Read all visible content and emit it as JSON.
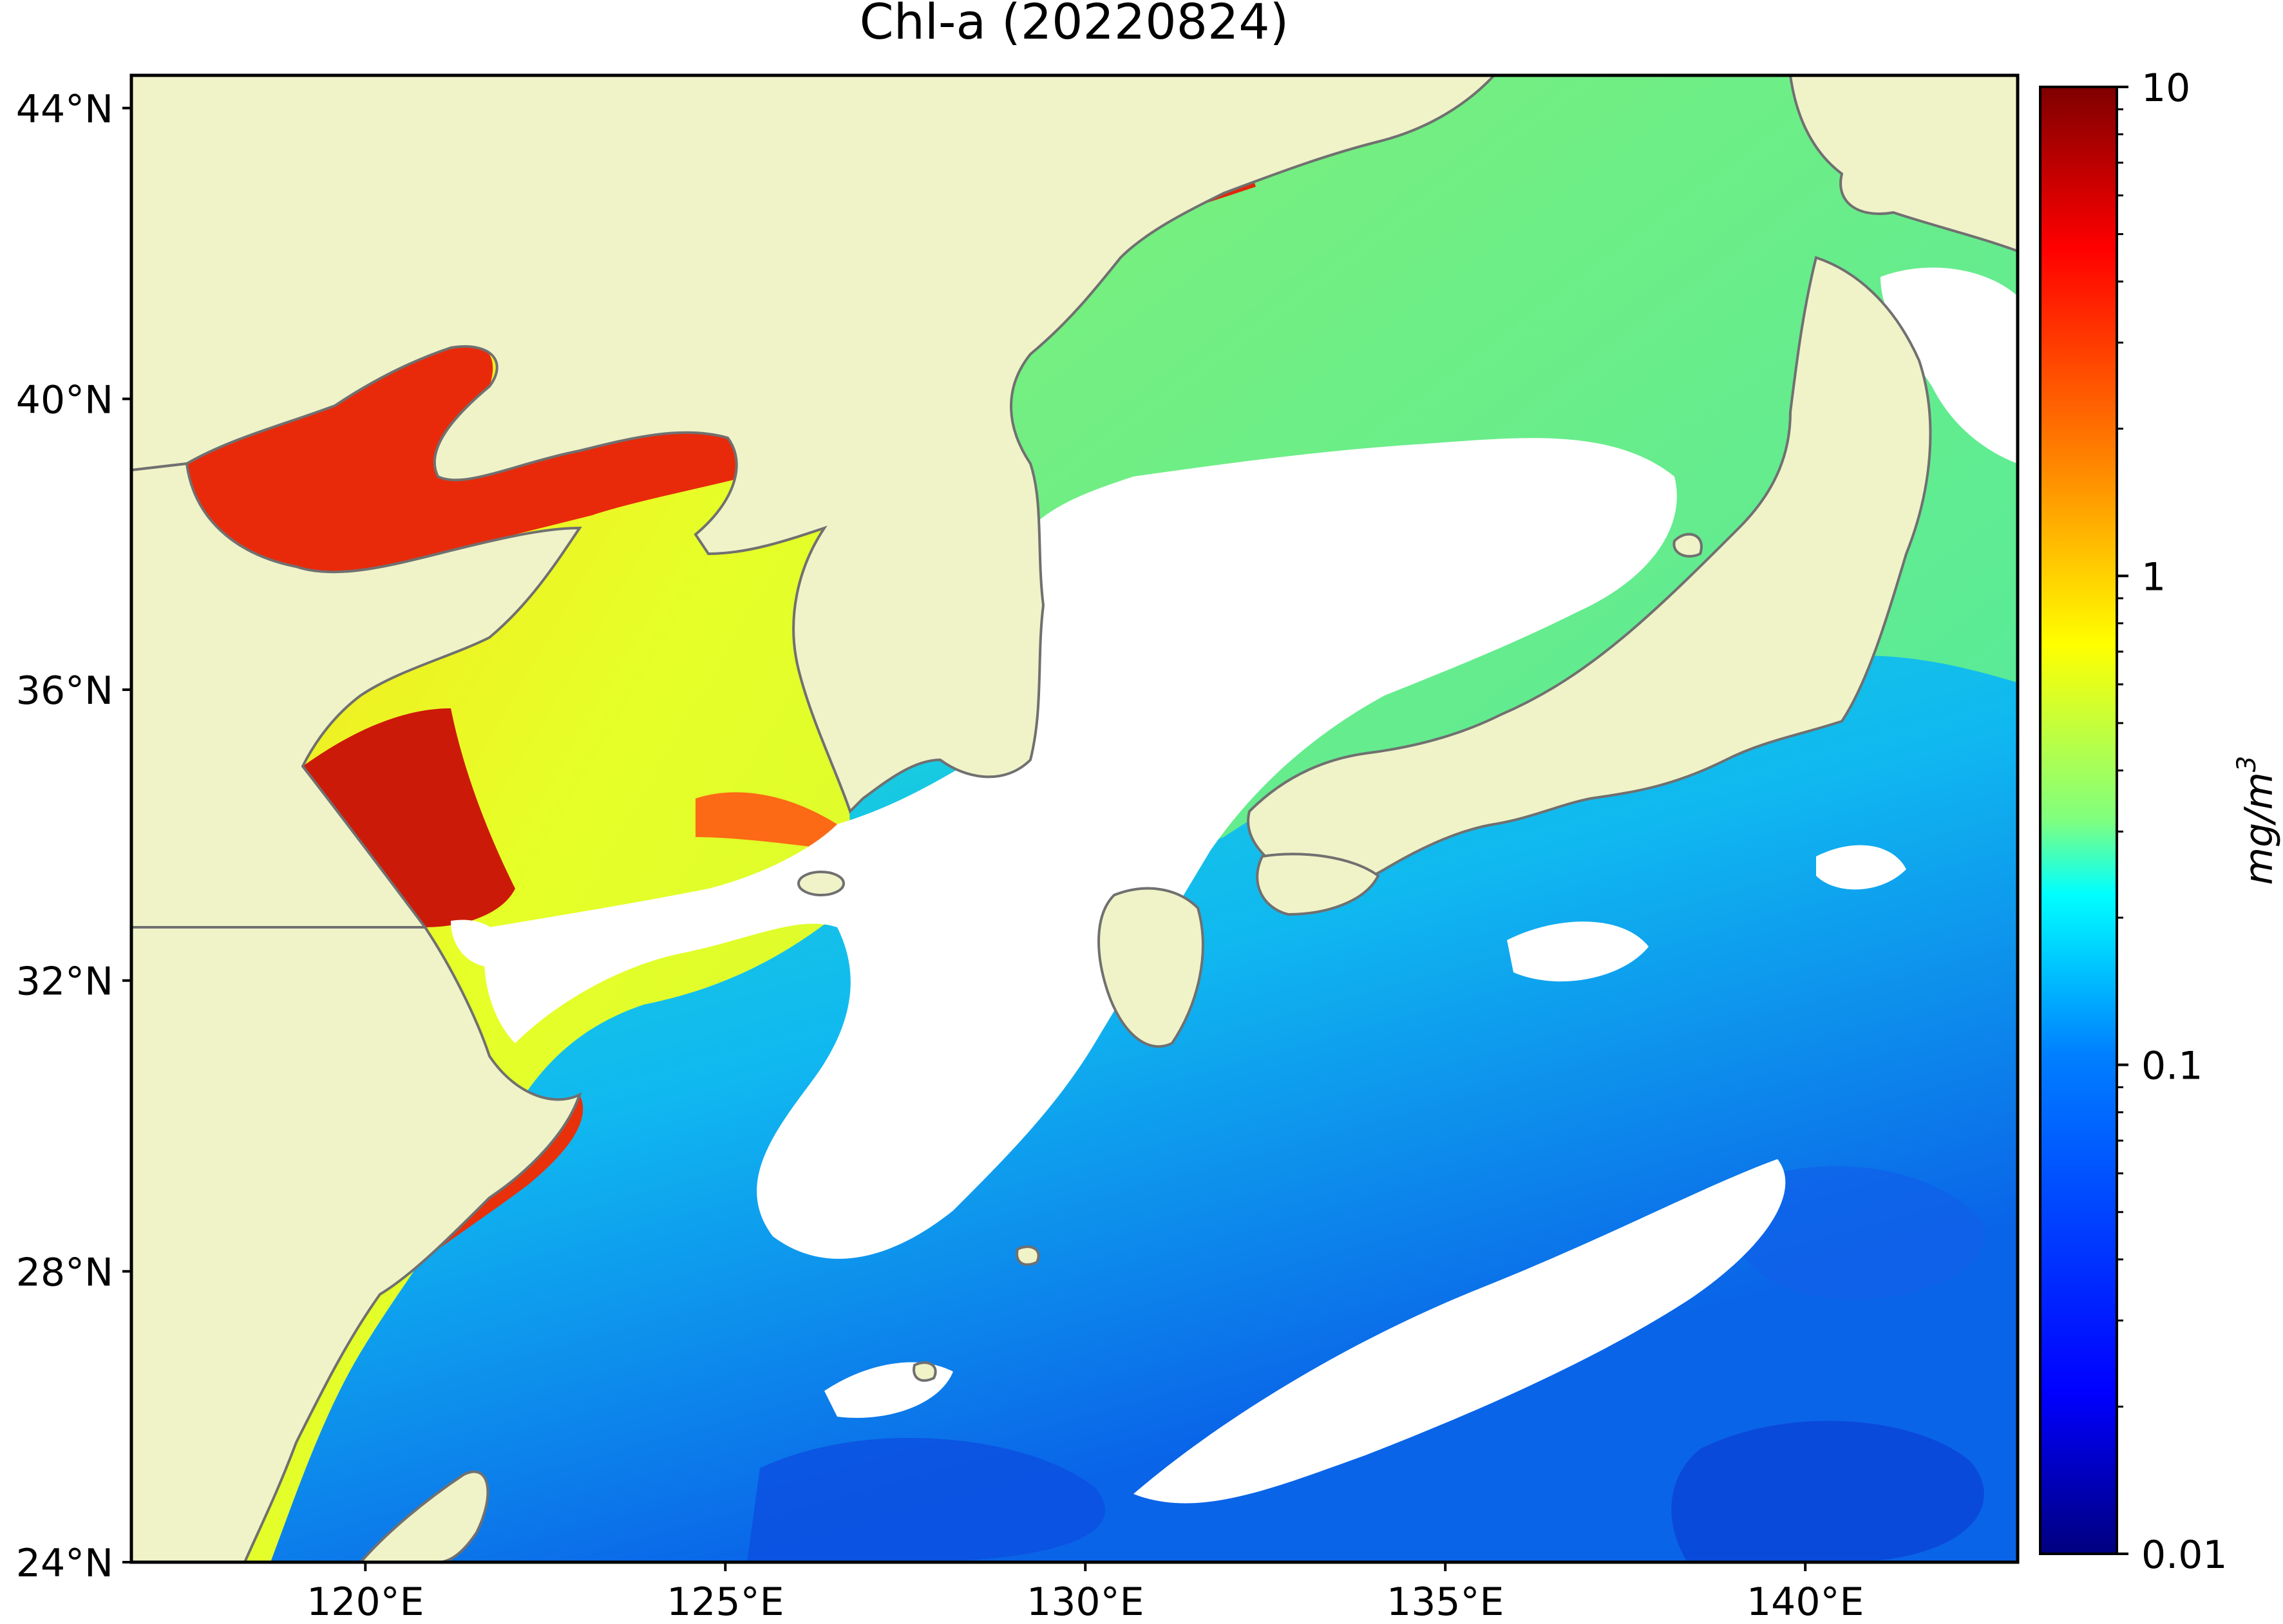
{
  "title": "Chl-a (20220824)",
  "map": {
    "lon_range": [
      116.75,
      142.95
    ],
    "lat_range": [
      24.0,
      44.45
    ],
    "lon_ticks": [
      {
        "value": 120,
        "label": "120°E"
      },
      {
        "value": 125,
        "label": "125°E"
      },
      {
        "value": 130,
        "label": "130°E"
      },
      {
        "value": 135,
        "label": "135°E"
      },
      {
        "value": 140,
        "label": "140°E"
      }
    ],
    "lat_ticks": [
      {
        "value": 24,
        "label": "24°N"
      },
      {
        "value": 28,
        "label": "28°N"
      },
      {
        "value": 32,
        "label": "32°N"
      },
      {
        "value": 36,
        "label": "36°N"
      },
      {
        "value": 40,
        "label": "40°N"
      },
      {
        "value": 44,
        "label": "44°N"
      }
    ],
    "colors": {
      "land": "#f0f3c8",
      "coastline": "#707070",
      "no_data": "#ffffff"
    }
  },
  "colorbar": {
    "label": "mg/m",
    "label_superscript": "3",
    "scale": "log",
    "range": [
      0.01,
      10
    ],
    "colormap": "jet",
    "major_ticks": [
      {
        "value": 0.01,
        "label": "0.01"
      },
      {
        "value": 0.1,
        "label": "0.1"
      },
      {
        "value": 1,
        "label": "1"
      },
      {
        "value": 10,
        "label": "10"
      }
    ],
    "colormap_stops": [
      "#00007f",
      "#0000ff",
      "#007fff",
      "#00ffff",
      "#7fff7f",
      "#ffff00",
      "#ff7f00",
      "#ff0000",
      "#7f0000"
    ]
  }
}
